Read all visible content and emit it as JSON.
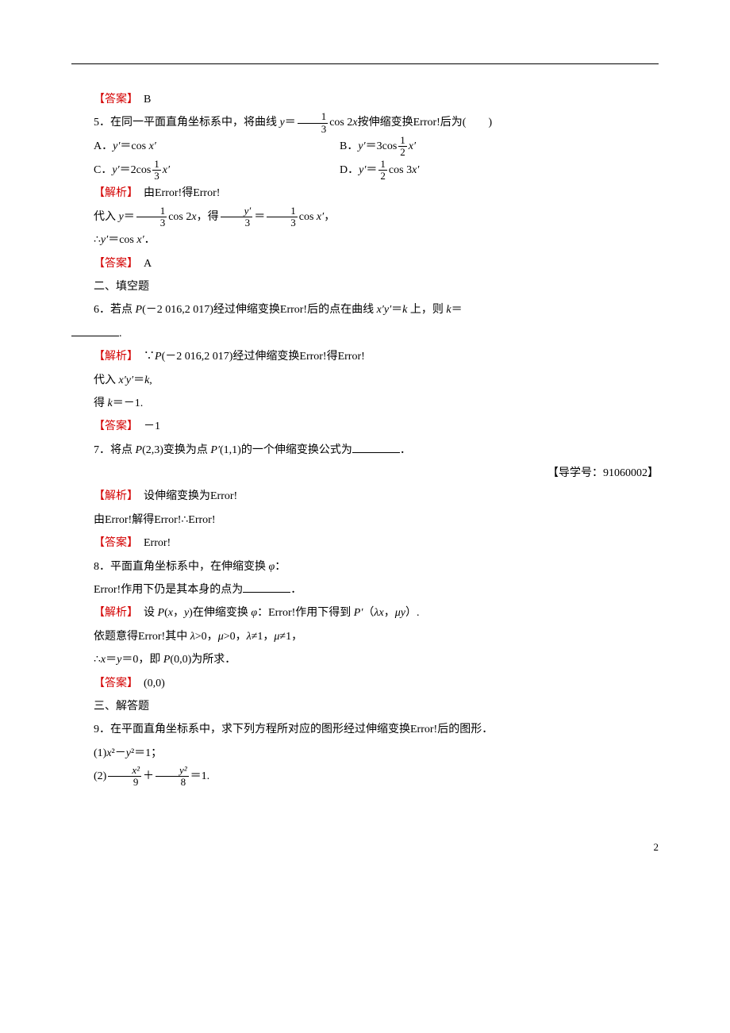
{
  "q4": {
    "ans_label": "【答案】",
    "ans": "　B"
  },
  "q5": {
    "stem_a": "5．在同一平面直角坐标系中，将曲线 ",
    "stem_y": "y",
    "stem_eq": "＝",
    "frac1_num": "1",
    "frac1_den": "3",
    "stem_b": "cos 2",
    "stem_x": "x",
    "stem_c": "按伸缩变换Error!后为(　　)",
    "optA_a": "A．",
    "opt_y": "y′",
    "opt_eq": "＝cos ",
    "opt_x": "x′",
    "optB_a": "B．",
    "optB_eq": "＝3cos",
    "optB_frac_num": "1",
    "optB_frac_den": "2",
    "optC_a": "C．",
    "optC_eq": "＝2cos",
    "optC_frac_num": "1",
    "optC_frac_den": "3",
    "optD_a": "D．",
    "optD_eq1": "＝",
    "optD_frac_num": "1",
    "optD_frac_den": "2",
    "optD_eq2": "cos 3",
    "ana_label": "【解析】",
    "ana": "　由Error!得Error!",
    "line2_a": "代入 ",
    "line2_b": "cos 2",
    "line2_c": "，得",
    "line2_frac2_num": "y′",
    "line2_frac2_den": "3",
    "line2_d": "＝",
    "line2_frac3_num": "1",
    "line2_frac3_den": "3",
    "line2_e": "cos ",
    "line2_f": "，",
    "line3": "∴",
    "line3_b": "＝cos ",
    "line3_c": "．",
    "ans_label": "【答案】",
    "ans": "　A"
  },
  "sec2": {
    "title": "二、填空题"
  },
  "q6": {
    "stem_a": "6．若点 ",
    "P": "P",
    "stem_b": "(－2 016,2 017)经过伸缩变换Error!后的点在曲线 ",
    "xy": "x′y′",
    "stem_c": "＝",
    "k": "k",
    "stem_d": " 上，则 ",
    "stem_e": "＝",
    "ana_label": "【解析】",
    "ana_a": "　∵",
    "ana_b": "(－2 016,2 017)经过伸缩变换Error!得Error!",
    "line2_a": "代入 ",
    "line2_b": "＝",
    "line2_c": ",",
    "line3_a": "得 ",
    "line3_b": "＝－1.",
    "ans_label": "【答案】",
    "ans": "　－1"
  },
  "q7": {
    "stem_a": "7．将点 ",
    "P": "P",
    "stem_b": "(2,3)变换为点 ",
    "Pp": "P′",
    "stem_c": "(1,1)的一个伸缩变换公式为",
    "stem_d": "．",
    "guide": "【导学号：91060002】",
    "ana_label": "【解析】",
    "ana": "　设伸缩变换为Error!",
    "line2": "由Error!解得Error!∴Error!",
    "ans_label": "【答案】",
    "ans": "　Error!"
  },
  "q8": {
    "stem_a": "8．平面直角坐标系中，在伸缩变换 ",
    "phi": "φ",
    "stem_b": "：",
    "stem2": "Error!作用下仍是其本身的点为",
    "stem2_b": "．",
    "ana_label": "【解析】",
    "ana_a": "　设 ",
    "P": "P",
    "ana_b": "(",
    "x": "x",
    "ana_c": "，",
    "y": "y",
    "ana_d": ")在伸缩变换 ",
    "ana_e": "：Error!作用下得到 ",
    "Pp": "P′",
    "ana_f": "（",
    "lam": "λx",
    "ana_g": "，",
    "mu": "μy",
    "ana_h": "）.",
    "line2_a": "依题意得Error!其中 ",
    "line2_b": ">0，",
    "line2_c": ">0，",
    "line2_d": "≠1，",
    "line2_e": "≠1，",
    "lambda": "λ",
    "muonly": "μ",
    "line3_a": "∴",
    "line3_b": "＝",
    "line3_c": "＝0，即 ",
    "line3_d": "(0,0)为所求．",
    "ans_label": "【答案】",
    "ans": "　(0,0)"
  },
  "sec3": {
    "title": "三、解答题"
  },
  "q9": {
    "stem": "9．在平面直角坐标系中，求下列方程所对应的图形经过伸缩变换Error!后的图形．",
    "p1_a": "(1)",
    "p1_x2": "x",
    "p1_b": "²－",
    "p1_y2": "y",
    "p1_c": "²＝1；",
    "p2_a": "(2)",
    "p2_f1_num": "x²",
    "p2_f1_den": "9",
    "p2_b": "＋",
    "p2_f2_num": "y²",
    "p2_f2_den": "8",
    "p2_c": "＝1."
  },
  "page": "2"
}
